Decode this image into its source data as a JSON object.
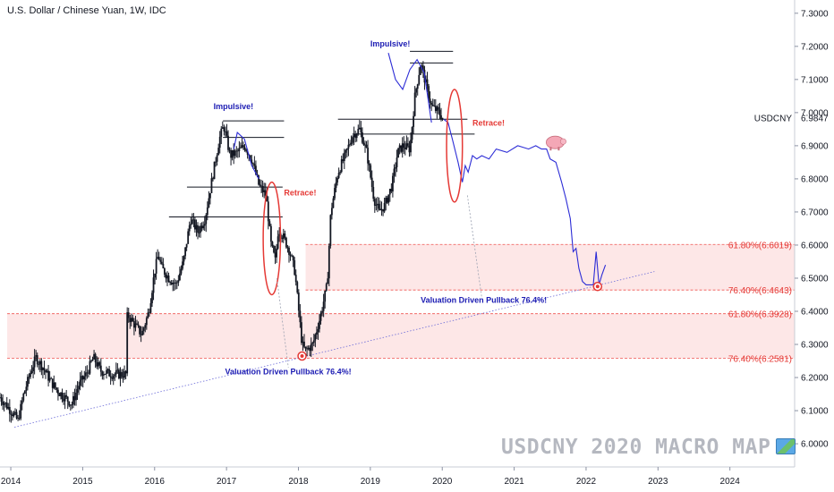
{
  "header": {
    "title": "U.S. Dollar / Chinese Yuan, 1W, IDC"
  },
  "watermark": {
    "text": "USDCNY 2020 MACRO MAP",
    "icon": "world-map-icon"
  },
  "colors": {
    "candles": "#131722",
    "projection": "#2c2cd6",
    "annotation_blue": "#1c1cb3",
    "annotation_red": "#e53935",
    "zone_fill": "#fde7e7",
    "zone_border": "#ef5350",
    "axis_text": "#131722"
  },
  "chart_data": {
    "type": "candlestick",
    "symbol": "USDCNY",
    "last_price_label": "USDCNY",
    "last_price": 6.9847,
    "y_ticks": [
      6.0,
      6.1,
      6.2,
      6.3,
      6.4,
      6.5,
      6.6,
      6.7,
      6.8,
      6.9,
      7.0,
      7.1,
      7.2,
      7.3
    ],
    "y_tick_labels": [
      "6.0000",
      "6.1000",
      "6.2000",
      "6.3000",
      "6.4000",
      "6.5000",
      "6.6000",
      "6.7000",
      "6.8000",
      "6.9000",
      "7.0000",
      "7.1000",
      "7.2000",
      "7.3000"
    ],
    "ylim": [
      5.93,
      7.34
    ],
    "x_ticks": [
      2014,
      2015,
      2016,
      2017,
      2018,
      2019,
      2020,
      2021,
      2022,
      2023,
      2024
    ],
    "x_tick_labels": [
      "2014",
      "2015",
      "2016",
      "2017",
      "2018",
      "2019",
      "2020",
      "2021",
      "2022",
      "2023",
      "2024"
    ],
    "xlim": [
      2013.85,
      2024.9
    ],
    "price_path": [
      [
        2013.85,
        6.14
      ],
      [
        2014.0,
        6.1
      ],
      [
        2014.1,
        6.07
      ],
      [
        2014.18,
        6.15
      ],
      [
        2014.28,
        6.22
      ],
      [
        2014.35,
        6.26
      ],
      [
        2014.45,
        6.23
      ],
      [
        2014.55,
        6.19
      ],
      [
        2014.65,
        6.16
      ],
      [
        2014.75,
        6.14
      ],
      [
        2014.85,
        6.12
      ],
      [
        2014.95,
        6.18
      ],
      [
        2015.05,
        6.21
      ],
      [
        2015.15,
        6.26
      ],
      [
        2015.25,
        6.22
      ],
      [
        2015.4,
        6.21
      ],
      [
        2015.6,
        6.21
      ],
      [
        2015.62,
        6.39
      ],
      [
        2015.72,
        6.36
      ],
      [
        2015.82,
        6.33
      ],
      [
        2015.92,
        6.4
      ],
      [
        2016.0,
        6.52
      ],
      [
        2016.05,
        6.57
      ],
      [
        2016.1,
        6.53
      ],
      [
        2016.2,
        6.5
      ],
      [
        2016.3,
        6.48
      ],
      [
        2016.4,
        6.55
      ],
      [
        2016.5,
        6.68
      ],
      [
        2016.6,
        6.64
      ],
      [
        2016.7,
        6.68
      ],
      [
        2016.8,
        6.8
      ],
      [
        2016.9,
        6.92
      ],
      [
        2016.96,
        6.96
      ],
      [
        2017.05,
        6.87
      ],
      [
        2017.15,
        6.88
      ],
      [
        2017.25,
        6.9
      ],
      [
        2017.35,
        6.86
      ],
      [
        2017.45,
        6.78
      ],
      [
        2017.55,
        6.75
      ],
      [
        2017.62,
        6.6
      ],
      [
        2017.68,
        6.55
      ],
      [
        2017.72,
        6.65
      ],
      [
        2017.8,
        6.62
      ],
      [
        2017.88,
        6.58
      ],
      [
        2017.95,
        6.52
      ],
      [
        2018.05,
        6.3
      ],
      [
        2018.1,
        6.28
      ],
      [
        2018.2,
        6.3
      ],
      [
        2018.3,
        6.38
      ],
      [
        2018.4,
        6.48
      ],
      [
        2018.45,
        6.7
      ],
      [
        2018.55,
        6.82
      ],
      [
        2018.65,
        6.87
      ],
      [
        2018.75,
        6.93
      ],
      [
        2018.85,
        6.95
      ],
      [
        2018.95,
        6.88
      ],
      [
        2019.05,
        6.74
      ],
      [
        2019.12,
        6.7
      ],
      [
        2019.2,
        6.72
      ],
      [
        2019.3,
        6.78
      ],
      [
        2019.38,
        6.88
      ],
      [
        2019.45,
        6.9
      ],
      [
        2019.55,
        6.89
      ],
      [
        2019.62,
        7.05
      ],
      [
        2019.7,
        7.15
      ],
      [
        2019.78,
        7.08
      ],
      [
        2019.85,
        7.02
      ],
      [
        2019.95,
        7.0
      ],
      [
        2020.02,
        6.98
      ]
    ],
    "projection_path": [
      [
        2020.02,
        6.98
      ],
      [
        2020.08,
        6.97
      ],
      [
        2020.14,
        6.92
      ],
      [
        2020.22,
        6.85
      ],
      [
        2020.28,
        6.79
      ],
      [
        2020.32,
        6.84
      ],
      [
        2020.36,
        6.82
      ],
      [
        2020.42,
        6.87
      ],
      [
        2020.48,
        6.86
      ],
      [
        2020.55,
        6.87
      ],
      [
        2020.65,
        6.86
      ],
      [
        2020.75,
        6.89
      ],
      [
        2020.9,
        6.88
      ],
      [
        2021.05,
        6.9
      ],
      [
        2021.2,
        6.89
      ],
      [
        2021.3,
        6.9
      ],
      [
        2021.38,
        6.89
      ],
      [
        2021.45,
        6.89
      ],
      [
        2021.5,
        6.86
      ],
      [
        2021.58,
        6.85
      ],
      [
        2021.66,
        6.79
      ],
      [
        2021.72,
        6.74
      ],
      [
        2021.78,
        6.68
      ],
      [
        2021.82,
        6.58
      ],
      [
        2021.86,
        6.59
      ],
      [
        2021.9,
        6.53
      ],
      [
        2021.95,
        6.49
      ],
      [
        2022.0,
        6.48
      ],
      [
        2022.1,
        6.48
      ],
      [
        2022.14,
        6.58
      ],
      [
        2022.18,
        6.48
      ],
      [
        2022.22,
        6.51
      ],
      [
        2022.27,
        6.54
      ]
    ],
    "projection_arc_2017": [
      [
        2017.1,
        6.89
      ],
      [
        2017.15,
        6.94
      ],
      [
        2017.25,
        6.92
      ],
      [
        2017.35,
        6.84
      ],
      [
        2017.45,
        6.8
      ]
    ],
    "projection_arc_2019": [
      [
        2019.25,
        7.18
      ],
      [
        2019.35,
        7.1
      ],
      [
        2019.45,
        7.07
      ],
      [
        2019.55,
        7.13
      ],
      [
        2019.65,
        7.16
      ],
      [
        2019.75,
        7.12
      ],
      [
        2019.85,
        6.97
      ]
    ],
    "resistance_levels": [
      {
        "x0": 2016.95,
        "x1": 2017.8,
        "y": 6.975
      },
      {
        "x0": 2016.95,
        "x1": 2017.8,
        "y": 6.925
      },
      {
        "x0": 2016.45,
        "x1": 2017.78,
        "y": 6.775
      },
      {
        "x0": 2016.2,
        "x1": 2017.78,
        "y": 6.685
      },
      {
        "x0": 2019.55,
        "x1": 2020.15,
        "y": 7.185
      },
      {
        "x0": 2019.55,
        "x1": 2020.15,
        "y": 7.15
      },
      {
        "x0": 2018.55,
        "x1": 2020.35,
        "y": 6.98
      },
      {
        "x0": 2018.75,
        "x1": 2020.45,
        "y": 6.935
      }
    ],
    "support_trendline": [
      [
        2014.05,
        6.05
      ],
      [
        2022.95,
        6.52
      ]
    ],
    "zones": [
      {
        "x0": 2013.95,
        "x1": 2024.9,
        "y_top": 6.3928,
        "y_bottom": 6.2581,
        "top_label": "61.80%(6.3928)",
        "bottom_label": "76.40%(6.2581)"
      },
      {
        "x0": 2018.1,
        "x1": 2024.9,
        "y_top": 6.6019,
        "y_bottom": 6.4643,
        "top_label": "61.80%(6.6019)",
        "bottom_label": "76.40%(6.4643)"
      }
    ],
    "annotations": [
      {
        "text": "Impulsive!",
        "x": 2016.82,
        "y": 7.01,
        "color": "blue"
      },
      {
        "text": "Impulsive!",
        "x": 2019.0,
        "y": 7.2,
        "color": "blue"
      },
      {
        "text": "Retrace!",
        "x": 2017.8,
        "y": 6.75,
        "color": "red"
      },
      {
        "text": "Retrace!",
        "x": 2020.42,
        "y": 6.96,
        "color": "red"
      },
      {
        "text": "Valuation Driven Pullback 76.4%!",
        "x": 2016.98,
        "y": 6.21,
        "color": "blue"
      },
      {
        "text": "Valuation Driven Pullback 76.4%!",
        "x": 2019.7,
        "y": 6.425,
        "color": "blue"
      }
    ],
    "red_ellipses": [
      {
        "cx": 2017.63,
        "cy": 6.62,
        "rx": 0.12,
        "ry": 0.17
      },
      {
        "cx": 2020.17,
        "cy": 6.9,
        "rx": 0.11,
        "ry": 0.17
      }
    ],
    "dotted_pointers": [
      [
        [
          2017.7,
          6.5
        ],
        [
          2017.86,
          6.23
        ]
      ],
      [
        [
          2020.35,
          6.75
        ],
        [
          2020.55,
          6.44
        ]
      ]
    ],
    "targets": [
      {
        "x": 2018.05,
        "y": 6.265
      },
      {
        "x": 2022.16,
        "y": 6.475
      }
    ],
    "pig_marker": {
      "x": 2021.57,
      "y": 6.91
    }
  }
}
